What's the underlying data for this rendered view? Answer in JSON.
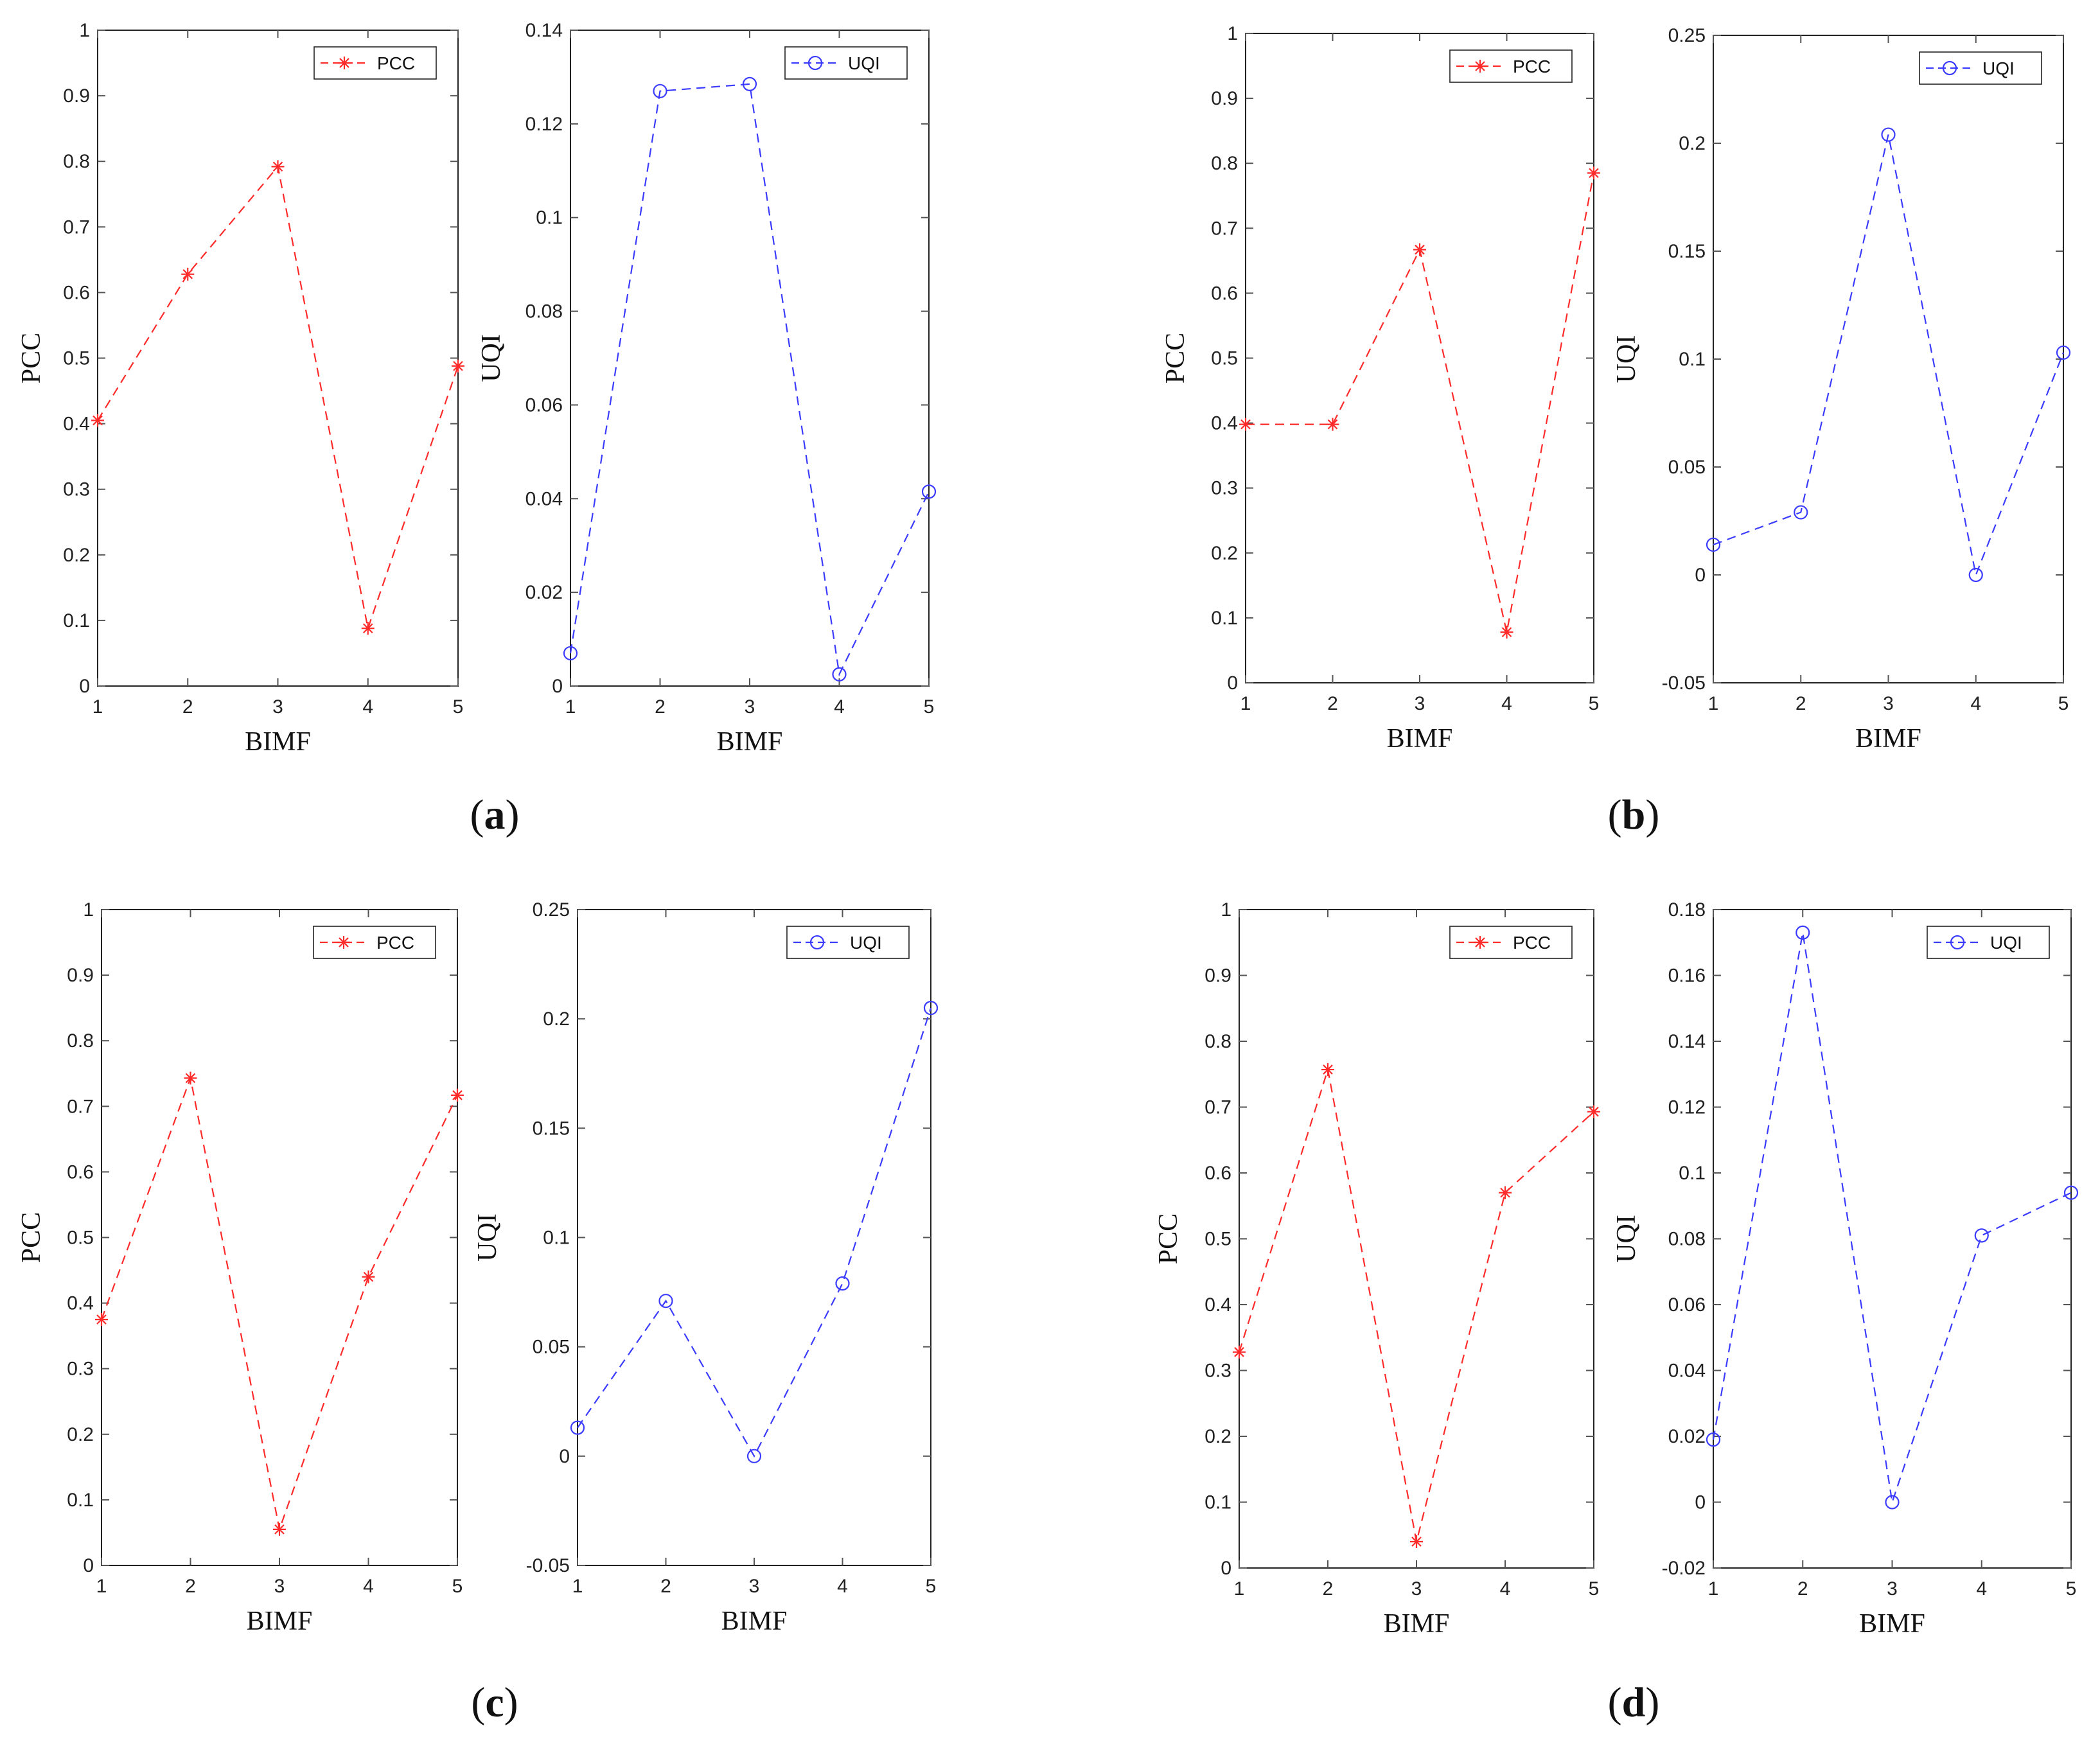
{
  "x_label": "BIMF",
  "colors": {
    "pcc": "#ff2a2a",
    "uqi": "#3b3bff",
    "axis": "#222222",
    "tick": "#555555"
  },
  "panels": [
    {
      "label_open": "(",
      "label_letter": "a",
      "label_close": ")"
    },
    {
      "label_open": "(",
      "label_letter": "b",
      "label_close": ")"
    },
    {
      "label_open": "(",
      "label_letter": "c",
      "label_close": ")"
    },
    {
      "label_open": "(",
      "label_letter": "d",
      "label_close": ")"
    }
  ],
  "chart_data": [
    {
      "panel": "a",
      "type": "line",
      "series_name": "PCC",
      "marker": "star",
      "color": "#ff2a2a",
      "xlabel": "BIMF",
      "ylabel": "PCC",
      "x": [
        1,
        2,
        3,
        4,
        5
      ],
      "xlim": [
        1,
        5
      ],
      "ylim": [
        0,
        1
      ],
      "yticks": [
        0,
        0.1,
        0.2,
        0.3,
        0.4,
        0.5,
        0.6,
        0.7,
        0.8,
        0.9,
        1
      ],
      "ytick_labels": [
        "0",
        "0.1",
        "0.2",
        "0.3",
        "0.4",
        "0.5",
        "0.6",
        "0.7",
        "0.8",
        "0.9",
        "1"
      ],
      "values": [
        0.405,
        0.628,
        0.792,
        0.088,
        0.488
      ],
      "legend": "top-right"
    },
    {
      "panel": "a",
      "type": "line",
      "series_name": "UQI",
      "marker": "circle",
      "color": "#3b3bff",
      "xlabel": "BIMF",
      "ylabel": "UQI",
      "x": [
        1,
        2,
        3,
        4,
        5
      ],
      "xlim": [
        1,
        5
      ],
      "ylim": [
        0,
        0.14
      ],
      "yticks": [
        0,
        0.02,
        0.04,
        0.06,
        0.08,
        0.1,
        0.12,
        0.14
      ],
      "ytick_labels": [
        "0",
        "0.02",
        "0.04",
        "0.06",
        "0.08",
        "0.1",
        "0.12",
        "0.14"
      ],
      "values": [
        0.007,
        0.127,
        0.1285,
        0.0025,
        0.0415
      ],
      "legend": "top-right"
    },
    {
      "panel": "b",
      "type": "line",
      "series_name": "PCC",
      "marker": "star",
      "color": "#ff2a2a",
      "xlabel": "BIMF",
      "ylabel": "PCC",
      "x": [
        1,
        2,
        3,
        4,
        5
      ],
      "xlim": [
        1,
        5
      ],
      "ylim": [
        0,
        1
      ],
      "yticks": [
        0,
        0.1,
        0.2,
        0.3,
        0.4,
        0.5,
        0.6,
        0.7,
        0.8,
        0.9,
        1
      ],
      "ytick_labels": [
        "0",
        "0.1",
        "0.2",
        "0.3",
        "0.4",
        "0.5",
        "0.6",
        "0.7",
        "0.8",
        "0.9",
        "1"
      ],
      "values": [
        0.398,
        0.398,
        0.667,
        0.078,
        0.785
      ],
      "legend": "top-right"
    },
    {
      "panel": "b",
      "type": "line",
      "series_name": "UQI",
      "marker": "circle",
      "color": "#3b3bff",
      "xlabel": "BIMF",
      "ylabel": "UQI",
      "x": [
        1,
        2,
        3,
        4,
        5
      ],
      "xlim": [
        1,
        5
      ],
      "ylim": [
        -0.05,
        0.25
      ],
      "yticks": [
        -0.05,
        0,
        0.05,
        0.1,
        0.15,
        0.2,
        0.25
      ],
      "ytick_labels": [
        "-0.05",
        "0",
        "0.05",
        "0.1",
        "0.15",
        "0.2",
        "0.25"
      ],
      "values": [
        0.014,
        0.029,
        0.204,
        0.0,
        0.103
      ],
      "legend": "top-right"
    },
    {
      "panel": "c",
      "type": "line",
      "series_name": "PCC",
      "marker": "star",
      "color": "#ff2a2a",
      "xlabel": "BIMF",
      "ylabel": "PCC",
      "x": [
        1,
        2,
        3,
        4,
        5
      ],
      "xlim": [
        1,
        5
      ],
      "ylim": [
        0,
        1
      ],
      "yticks": [
        0,
        0.1,
        0.2,
        0.3,
        0.4,
        0.5,
        0.6,
        0.7,
        0.8,
        0.9,
        1
      ],
      "ytick_labels": [
        "0",
        "0.1",
        "0.2",
        "0.3",
        "0.4",
        "0.5",
        "0.6",
        "0.7",
        "0.8",
        "0.9",
        "1"
      ],
      "values": [
        0.375,
        0.743,
        0.055,
        0.44,
        0.717
      ],
      "legend": "top-right"
    },
    {
      "panel": "c",
      "type": "line",
      "series_name": "UQI",
      "marker": "circle",
      "color": "#3b3bff",
      "xlabel": "BIMF",
      "ylabel": "UQI",
      "x": [
        1,
        2,
        3,
        4,
        5
      ],
      "xlim": [
        1,
        5
      ],
      "ylim": [
        -0.05,
        0.25
      ],
      "yticks": [
        -0.05,
        0,
        0.05,
        0.1,
        0.15,
        0.2,
        0.25
      ],
      "ytick_labels": [
        "-0.05",
        "0",
        "0.05",
        "0.1",
        "0.15",
        "0.2",
        "0.25"
      ],
      "values": [
        0.013,
        0.071,
        0.0,
        0.079,
        0.205
      ],
      "legend": "top-right"
    },
    {
      "panel": "d",
      "type": "line",
      "series_name": "PCC",
      "marker": "star",
      "color": "#ff2a2a",
      "xlabel": "BIMF",
      "ylabel": "PCC",
      "x": [
        1,
        2,
        3,
        4,
        5
      ],
      "xlim": [
        1,
        5
      ],
      "ylim": [
        0,
        1
      ],
      "yticks": [
        0,
        0.1,
        0.2,
        0.3,
        0.4,
        0.5,
        0.6,
        0.7,
        0.8,
        0.9,
        1
      ],
      "ytick_labels": [
        "0",
        "0.1",
        "0.2",
        "0.3",
        "0.4",
        "0.5",
        "0.6",
        "0.7",
        "0.8",
        "0.9",
        "1"
      ],
      "values": [
        0.328,
        0.757,
        0.04,
        0.57,
        0.693
      ],
      "legend": "top-right"
    },
    {
      "panel": "d",
      "type": "line",
      "series_name": "UQI",
      "marker": "circle",
      "color": "#3b3bff",
      "xlabel": "BIMF",
      "ylabel": "UQI",
      "x": [
        1,
        2,
        3,
        4,
        5
      ],
      "xlim": [
        1,
        5
      ],
      "ylim": [
        -0.02,
        0.18
      ],
      "yticks": [
        -0.02,
        0,
        0.02,
        0.04,
        0.06,
        0.08,
        0.1,
        0.12,
        0.14,
        0.16,
        0.18
      ],
      "ytick_labels": [
        "-0.02",
        "0",
        "0.02",
        "0.04",
        "0.06",
        "0.08",
        "0.1",
        "0.12",
        "0.14",
        "0.16",
        "0.18"
      ],
      "values": [
        0.019,
        0.173,
        0.0,
        0.081,
        0.094
      ],
      "legend": "top-right"
    }
  ]
}
